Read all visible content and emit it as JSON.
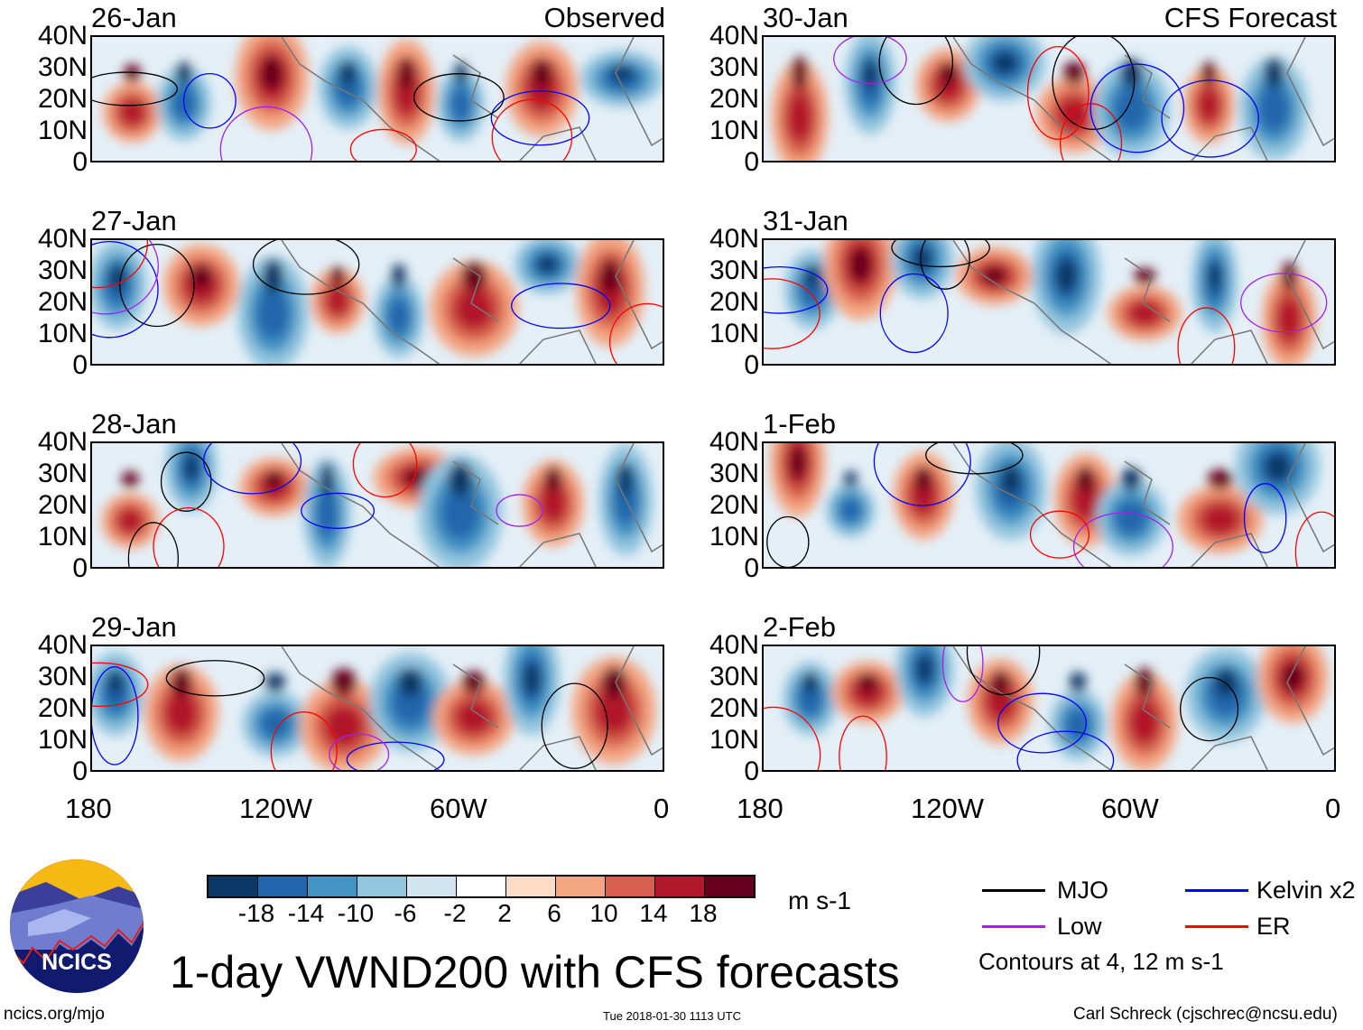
{
  "panels": [
    {
      "date": "26-Jan",
      "label": "Observed"
    },
    {
      "date": "27-Jan"
    },
    {
      "date": "28-Jan"
    },
    {
      "date": "29-Jan"
    },
    {
      "date": "30-Jan",
      "label": "CFS Forecast"
    },
    {
      "date": "31-Jan"
    },
    {
      "date": "1-Feb"
    },
    {
      "date": "2-Feb"
    }
  ],
  "y_ticks": [
    "40N",
    "30N",
    "20N",
    "10N",
    "0"
  ],
  "x_ticks": [
    "180",
    "120W",
    "60W",
    "0"
  ],
  "colorbar": {
    "colors": [
      "#0b3866",
      "#2166ac",
      "#4393c3",
      "#92c5de",
      "#d1e5f0",
      "#ffffff",
      "#fddbc7",
      "#f4a582",
      "#d6604d",
      "#b2182b",
      "#67001f"
    ],
    "labels": [
      "-18",
      "-14",
      "-10",
      "-6",
      "-2",
      "2",
      "6",
      "10",
      "14",
      "18"
    ],
    "units": "m s-1"
  },
  "legend": {
    "items": [
      {
        "label": "MJO",
        "color": "#000000"
      },
      {
        "label": "Kelvin x2",
        "color": "#0000ff"
      },
      {
        "label": "Low",
        "color": "#a020f0"
      },
      {
        "label": "ER",
        "color": "#ff0000"
      }
    ],
    "note": "Contours at 4, 12 m s-1"
  },
  "logo": {
    "text": "NCICS"
  },
  "title": "1-day VWND200 with CFS forecasts",
  "footer": {
    "left": "ncics.org/mjo",
    "center": "Tue 2018-01-30 1113 UTC",
    "right": "Carl Schreck (cjschrec@ncsu.edu)"
  }
}
